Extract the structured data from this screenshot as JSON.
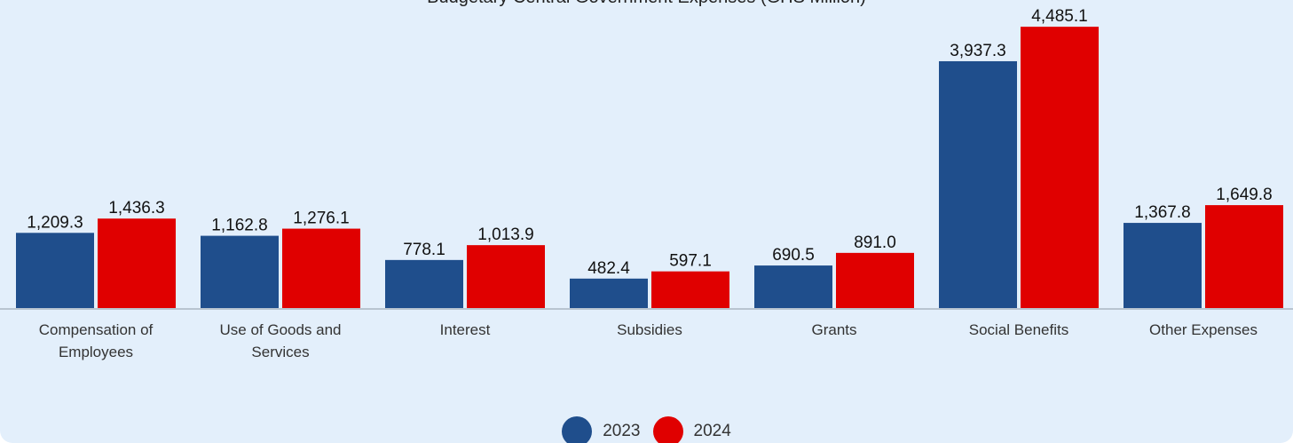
{
  "chart_data": {
    "type": "bar",
    "title": "Budgetary Central Government Expenses (GHS Million)",
    "categories": [
      [
        "Compensation of",
        "Employees"
      ],
      [
        "Use of Goods and",
        "Services"
      ],
      [
        "Interest"
      ],
      [
        "Subsidies"
      ],
      [
        "Grants"
      ],
      [
        "Social Benefits"
      ],
      [
        "Other Expenses"
      ]
    ],
    "series": [
      {
        "name": "2023",
        "color": "#1f4e8c",
        "values": [
          1209.3,
          1162.8,
          778.1,
          482.4,
          690.5,
          3937.3,
          1367.8
        ]
      },
      {
        "name": "2024",
        "color": "#e00000",
        "values": [
          1436.3,
          1276.1,
          1013.9,
          597.1,
          891.0,
          4485.1,
          1649.8
        ]
      }
    ],
    "ylim": [
      0,
      4600
    ],
    "grid": false,
    "legend_position": "bottom-center",
    "value_format": "comma-1-decimal"
  }
}
